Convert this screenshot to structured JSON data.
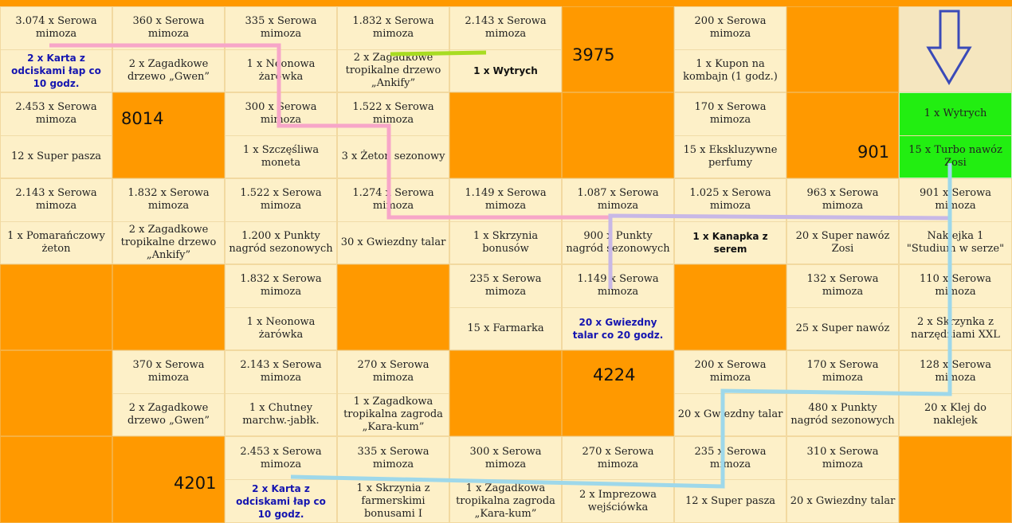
{
  "board": {
    "rows": [
      [
        {
          "type": "tile",
          "top": "3.074 x Serowa mimoza",
          "bottom": "2 x Karta z odciskami łap co 10 godz.",
          "bstyle": "blue"
        },
        {
          "type": "tile",
          "top": "360 x Serowa mimoza",
          "bottom": "2 x Zagadkowe drzewo „Gwen”"
        },
        {
          "type": "tile",
          "top": "335 x Serowa mimoza",
          "bottom": "1 x Neonowa żarówka"
        },
        {
          "type": "tile",
          "top": "1.832 x Serowa mimoza",
          "bottom": "2 x Zagadkowe tropikalne drzewo „Ankify”"
        },
        {
          "type": "tile",
          "top": "2.143 x Serowa mimoza",
          "bottom": "1 x Wytrych",
          "bstyle": "bold"
        },
        {
          "type": "orange",
          "num": "3975"
        },
        {
          "type": "tile",
          "top": "200 x Serowa mimoza",
          "bottom": "1 x Kupon na kombajn (1 godz.)"
        },
        {
          "type": "orange"
        },
        {
          "type": "topfill"
        }
      ],
      [
        {
          "type": "tile",
          "top": "2.453 x Serowa mimoza",
          "bottom": "12 x Super pasza"
        },
        {
          "type": "orange",
          "num": "8014"
        },
        {
          "type": "tile",
          "top": "300 x Serowa mimoza",
          "bottom": "1 x Szczęśliwa moneta"
        },
        {
          "type": "tile",
          "top": "1.522 x Serowa mimoza",
          "bottom": "3 x Żeton sezonowy"
        },
        {
          "type": "orange"
        },
        {
          "type": "orange"
        },
        {
          "type": "tile",
          "top": "170 x Serowa mimoza",
          "bottom": "15 x Ekskluzywne perfumy"
        },
        {
          "type": "orange",
          "num": "901"
        },
        {
          "type": "green",
          "top": "1 x Wytrych",
          "bottom": "15 x Turbo nawóz Zosi"
        }
      ],
      [
        {
          "type": "tile",
          "top": "2.143 x Serowa mimoza",
          "bottom": "1 x Pomarańczowy żeton"
        },
        {
          "type": "tile",
          "top": "1.832 x Serowa mimoza",
          "bottom": "2 x Zagadkowe tropikalne drzewo „Ankify”"
        },
        {
          "type": "tile",
          "top": "1.522 x Serowa mimoza",
          "bottom": "1.200 x Punkty nagród sezonowych"
        },
        {
          "type": "tile",
          "top": "1.274 x Serowa mimoza",
          "bottom": "30 x Gwiezdny talar"
        },
        {
          "type": "tile",
          "top": "1.149 x Serowa mimoza",
          "bottom": "1 x Skrzynia bonusów"
        },
        {
          "type": "tile",
          "top": "1.087 x Serowa mimoza",
          "bottom": "900 x Punkty nagród sezonowych"
        },
        {
          "type": "tile",
          "top": "1.025 x Serowa mimoza",
          "bottom": "1 x Kanapka z serem",
          "bstyle": "bold"
        },
        {
          "type": "tile",
          "top": "963 x Serowa mimoza",
          "bottom": "20 x Super nawóz Zosi"
        },
        {
          "type": "tile",
          "top": "901 x Serowa mimoza",
          "bottom": "Naklejka 1 \"Studium w serze\""
        }
      ],
      [
        {
          "type": "orange"
        },
        {
          "type": "orange"
        },
        {
          "type": "tile",
          "top": "1.832 x Serowa mimoza",
          "bottom": "1 x Neonowa żarówka"
        },
        {
          "type": "orange"
        },
        {
          "type": "tile",
          "top": "235 x Serowa mimoza",
          "bottom": "15 x Farmarka"
        },
        {
          "type": "tile",
          "top": "1.149 x Serowa mimoza",
          "bottom": "20 x Gwiezdny talar co 20 godz.",
          "bstyle": "blue"
        },
        {
          "type": "orange"
        },
        {
          "type": "tile",
          "top": "132 x Serowa mimoza",
          "bottom": "25 x Super nawóz"
        },
        {
          "type": "tile",
          "top": "110 x Serowa mimoza",
          "bottom": "2 x Skrzynka z narzędziami XXL"
        }
      ],
      [
        {
          "type": "orange"
        },
        {
          "type": "tile",
          "top": "370 x Serowa mimoza",
          "bottom": "2 x Zagadkowe drzewo „Gwen”"
        },
        {
          "type": "tile",
          "top": "2.143 x Serowa mimoza",
          "bottom": "1 x Chutney marchw.-jabłk."
        },
        {
          "type": "tile",
          "top": "270 x Serowa mimoza",
          "bottom": "1 x Zagadkowa tropikalna zagroda „Kara-kum”"
        },
        {
          "type": "orange"
        },
        {
          "type": "orange",
          "num": "4224"
        },
        {
          "type": "tile",
          "top": "200 x Serowa mimoza",
          "bottom": "20 x Gwiezdny talar"
        },
        {
          "type": "tile",
          "top": "170 x Serowa mimoza",
          "bottom": "480 x Punkty nagród sezonowych"
        },
        {
          "type": "tile",
          "top": "128 x Serowa mimoza",
          "bottom": "20 x Klej do naklejek"
        }
      ],
      [
        {
          "type": "orange"
        },
        {
          "type": "orange",
          "num": "4201"
        },
        {
          "type": "tile",
          "top": "2.453 x Serowa mimoza",
          "bottom": "2 x Karta z odciskami łap co 10 godz.",
          "bstyle": "blue"
        },
        {
          "type": "tile",
          "top": "335 x Serowa mimoza",
          "bottom": "1 x Skrzynia z farmerskimi bonusami I"
        },
        {
          "type": "tile",
          "top": "300 x Serowa mimoza",
          "bottom": "1 x Zagadkowa tropikalna zagroda „Kara-kum”"
        },
        {
          "type": "tile",
          "top": "270 x Serowa mimoza",
          "bottom": "2 x Imprezowa wejściówka"
        },
        {
          "type": "tile",
          "top": "235 x Serowa mimoza",
          "bottom": "12 x Super pasza"
        },
        {
          "type": "tile",
          "top": "310 x Serowa mimoza",
          "bottom": "20 x Gwiezdny talar"
        },
        {
          "type": "orange"
        }
      ]
    ]
  },
  "colors": {
    "tile": "#fdf0c8",
    "orange": "#ff9900",
    "green": "#22ee11",
    "pink_path": "#f7a6c8",
    "purple_path": "#c8b8e6",
    "lightblue_path": "#9ed8ea",
    "lime_path": "#a8dc22",
    "arrow": "#3a4ab8"
  },
  "icons": {
    "arrow": "down-arrow-icon"
  }
}
